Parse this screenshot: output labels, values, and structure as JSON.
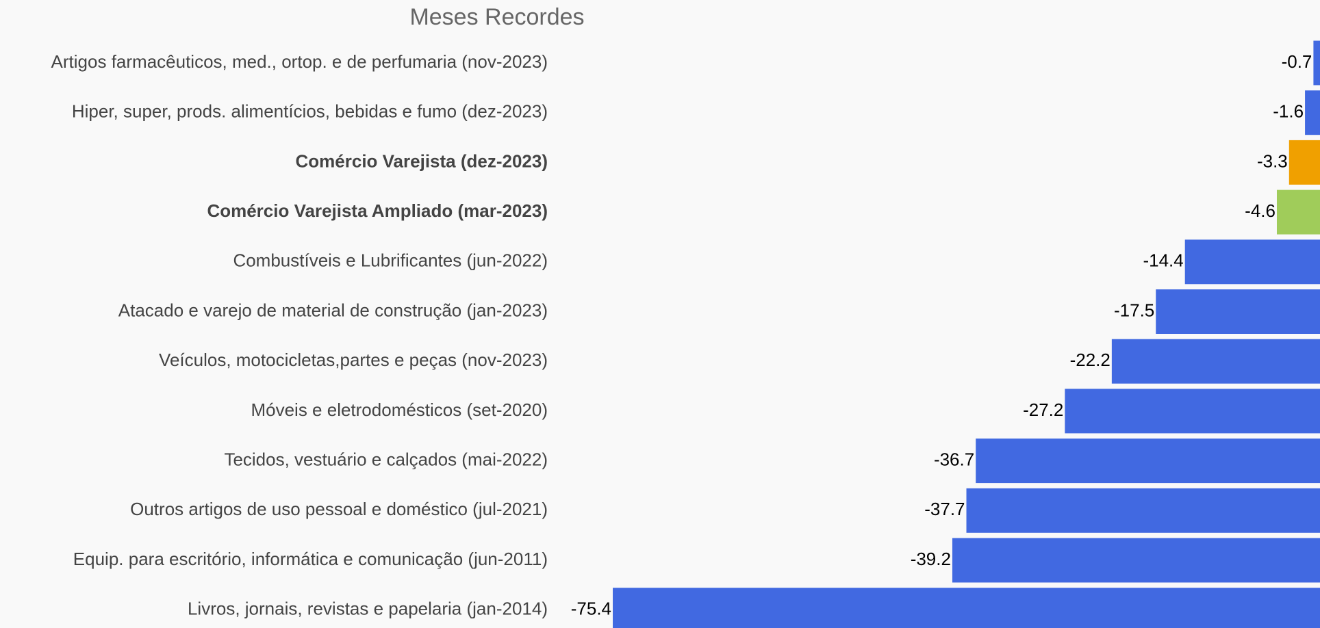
{
  "chart_data": {
    "type": "bar",
    "orientation": "horizontal",
    "title": "Meses Recordes",
    "categories": [
      "Artigos farmacêuticos, med., ortop. e de perfumaria (nov-2023)",
      "Hiper, super, prods.  alimentícios, bebidas e fumo (dez-2023)",
      "Comércio Varejista (dez-2023)",
      "Comércio Varejista Ampliado (mar-2023)",
      "Combustíveis e Lubrificantes (jun-2022)",
      "Atacado e varejo de material de construção (jan-2023)",
      "Veículos, motocicletas,partes e peças (nov-2023)",
      "Móveis e eletrodomésticos (set-2020)",
      "Tecidos, vestuário e calçados (mai-2022)",
      "Outros artigos de uso pessoal e doméstico (jul-2021)",
      "Equip. para escritório, informática e comunicação (jun-2011)",
      "Livros, jornais, revistas e papelaria (jan-2014)"
    ],
    "values": [
      -0.7,
      -1.6,
      -3.3,
      -4.6,
      -14.4,
      -17.5,
      -22.2,
      -27.2,
      -36.7,
      -37.7,
      -39.2,
      -75.4
    ],
    "color": "#4169e1",
    "colors": [
      "#4169e1",
      "#4169e1",
      "#f0a000",
      "#a0cc5a",
      "#4169e1",
      "#4169e1",
      "#4169e1",
      "#4169e1",
      "#4169e1",
      "#4169e1",
      "#4169e1",
      "#4169e1"
    ],
    "xlim": [
      -80,
      0
    ]
  }
}
